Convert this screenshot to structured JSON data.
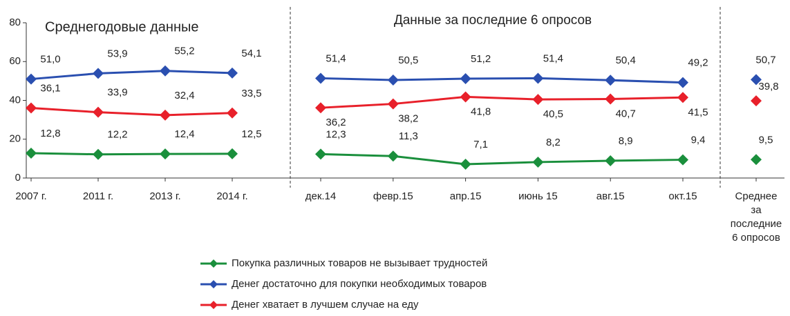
{
  "chart_data": {
    "type": "line",
    "ylim": [
      0,
      80
    ],
    "yticks": [
      0,
      20,
      40,
      60,
      80
    ],
    "groups": [
      {
        "title": "Среднегодовые данные",
        "categories": [
          "2007 г.",
          "2011 г.",
          "2013 г.",
          "2014 г."
        ]
      },
      {
        "title": "Данные за последние 6 опросов",
        "categories": [
          "дек.14",
          "февр.15",
          "апр.15",
          "июнь 15",
          "авг.15",
          "окт.15"
        ]
      },
      {
        "categories": [
          "Среднее\nза\nпоследние\n6 опросов"
        ]
      }
    ],
    "series": [
      {
        "name": "Покупка различных товаров не вызывает трудностей",
        "color": "#1a8f3c",
        "values": [
          [
            12.8,
            12.2,
            12.4,
            12.5
          ],
          [
            12.3,
            11.3,
            7.1,
            8.2,
            8.9,
            9.4
          ],
          [
            9.5
          ]
        ],
        "value_labels": [
          [
            "12,8",
            "12,2",
            "12,4",
            "12,5"
          ],
          [
            "12,3",
            "11,3",
            "7,1",
            "8,2",
            "8,9",
            "9,4"
          ],
          [
            "9,5"
          ]
        ]
      },
      {
        "name": "Денег достаточно для покупки необходимых товаров",
        "color": "#2a4fb0",
        "values": [
          [
            51.0,
            53.9,
            55.2,
            54.1
          ],
          [
            51.4,
            50.5,
            51.2,
            51.4,
            50.4,
            49.2
          ],
          [
            50.7
          ]
        ],
        "value_labels": [
          [
            "51,0",
            "53,9",
            "55,2",
            "54,1"
          ],
          [
            "51,4",
            "50,5",
            "51,2",
            "51,4",
            "50,4",
            "49,2"
          ],
          [
            "50,7"
          ]
        ]
      },
      {
        "name": "Денег хватает в лучшем случае на еду",
        "color": "#e8202a",
        "values": [
          [
            36.1,
            33.9,
            32.4,
            33.5
          ],
          [
            36.2,
            38.2,
            41.8,
            40.5,
            40.7,
            41.5
          ],
          [
            39.8
          ]
        ],
        "value_labels": [
          [
            "36,1",
            "33,9",
            "32,4",
            "33,5"
          ],
          [
            "36,2",
            "38,2",
            "41,8",
            "40,5",
            "40,7",
            "41,5"
          ],
          [
            "39,8"
          ]
        ]
      }
    ]
  }
}
